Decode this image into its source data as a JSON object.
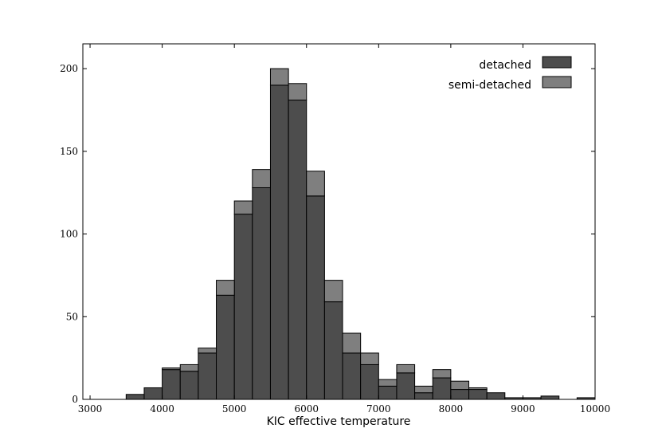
{
  "chart_data": {
    "type": "bar",
    "stacked": true,
    "title": "",
    "xlabel": "KIC effective temperature",
    "ylabel": "",
    "xlim": [
      2900,
      10000
    ],
    "ylim": [
      0,
      215
    ],
    "bin_width": 250,
    "xticks": [
      "3000",
      "4000",
      "5000",
      "6000",
      "7000",
      "8000",
      "9000",
      "10000"
    ],
    "yticks": [
      "0",
      "50",
      "100",
      "150",
      "200"
    ],
    "bins": [
      3500,
      3750,
      4000,
      4250,
      4500,
      4750,
      5000,
      5250,
      5500,
      5750,
      6000,
      6250,
      6500,
      6750,
      7000,
      7250,
      7500,
      7750,
      8000,
      8250,
      8500,
      8750,
      9000,
      9250,
      9500,
      9750
    ],
    "series": [
      {
        "name": "detached",
        "color": "#4d4d4d",
        "values": [
          3,
          7,
          18,
          17,
          28,
          63,
          112,
          128,
          190,
          181,
          123,
          59,
          28,
          21,
          8,
          16,
          4,
          13,
          6,
          6,
          4,
          1,
          1,
          2,
          0,
          1
        ]
      },
      {
        "name": "semi-detached",
        "color": "#7f7f7f",
        "values": [
          0,
          0,
          1,
          4,
          3,
          9,
          8,
          11,
          10,
          10,
          15,
          13,
          12,
          7,
          4,
          5,
          4,
          5,
          5,
          1,
          0,
          0,
          0,
          0,
          0,
          0
        ]
      }
    ],
    "legend": {
      "position": "top-right"
    }
  }
}
